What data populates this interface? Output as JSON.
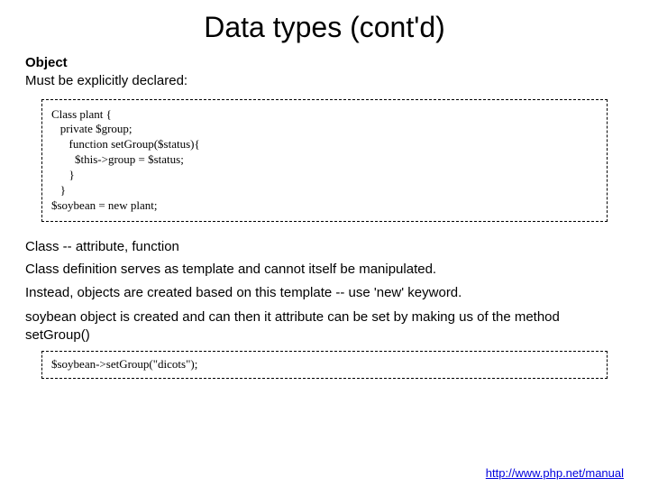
{
  "title": "Data types (cont'd)",
  "section1": {
    "heading": "Object",
    "intro": "Must be explicitly declared:"
  },
  "codebox1": "Class plant {\n   private $group;\n      function setGroup($status){\n        $this->group = $status;\n      }\n   }\n$soybean = new plant;",
  "section2": {
    "line1": "Class -- attribute, function",
    "line2": "Class definition serves as template and cannot itself be manipulated.",
    "line3": "Instead, objects are created based on this template -- use 'new' keyword."
  },
  "section3": {
    "text": "soybean object is created and can then it attribute can be set by making us of the method setGroup()"
  },
  "codebox2": "$soybean->setGroup(\"dicots\");",
  "footer": {
    "url": "http://www.php.net/manual"
  }
}
